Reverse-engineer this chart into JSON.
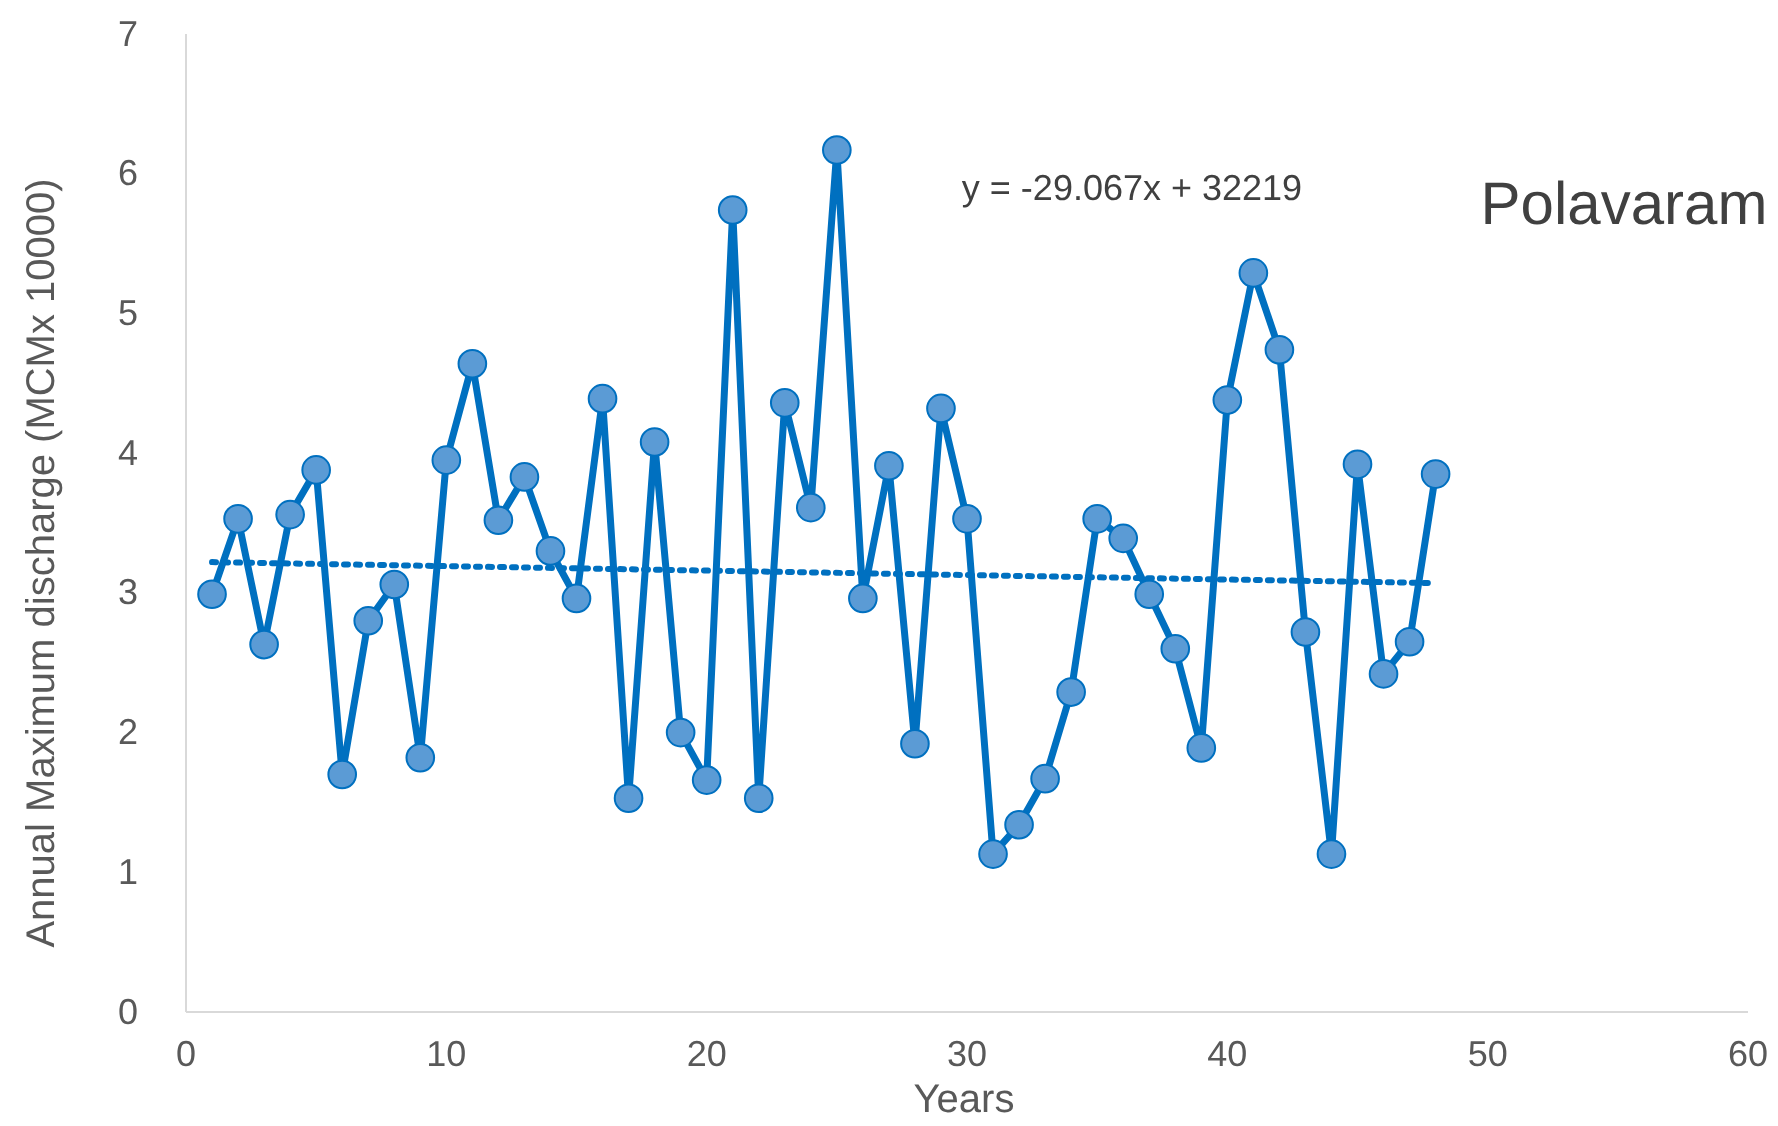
{
  "chart_data": {
    "type": "line",
    "title": "Polavaram",
    "xlabel": "Years",
    "ylabel": "Annual Maximum discharge  (MCMx 10000)",
    "annotations": [
      "y = -29.067x + 32219"
    ],
    "xlim": [
      0,
      60
    ],
    "xticks": [
      0,
      10,
      20,
      30,
      40,
      50,
      60
    ],
    "ylim": [
      0,
      7
    ],
    "yticks": [
      0,
      1,
      2,
      3,
      4,
      5,
      6,
      7
    ],
    "grid": false,
    "series": [
      {
        "color": "#0070c0",
        "marker": "circle",
        "line_style": "solid",
        "x": [
          1,
          2,
          3,
          4,
          5,
          6,
          7,
          8,
          9,
          10,
          11,
          12,
          13,
          14,
          15,
          16,
          17,
          18,
          19,
          20,
          21,
          22,
          23,
          24,
          25,
          26,
          27,
          28,
          29,
          30,
          31,
          32,
          33,
          34,
          35,
          36,
          37,
          38,
          39,
          40,
          41,
          42,
          43,
          44,
          45,
          46,
          47,
          48
        ],
        "values": [
          2.99,
          3.53,
          2.63,
          3.56,
          3.88,
          1.7,
          2.8,
          3.06,
          1.82,
          3.95,
          4.64,
          3.52,
          3.83,
          3.3,
          2.96,
          4.39,
          1.53,
          4.08,
          2.0,
          1.66,
          5.74,
          1.53,
          4.36,
          3.61,
          6.17,
          2.96,
          3.91,
          1.92,
          4.32,
          3.53,
          1.13,
          1.34,
          1.67,
          2.29,
          3.53,
          3.39,
          2.99,
          2.6,
          1.89,
          4.38,
          5.29,
          4.74,
          2.72,
          1.13,
          3.92,
          2.42,
          2.65,
          3.85
        ]
      },
      {
        "color": "#0070c0",
        "marker": "none",
        "line_style": "dotted",
        "x": [
          1,
          48
        ],
        "values": [
          3.22,
          3.07
        ]
      }
    ]
  }
}
